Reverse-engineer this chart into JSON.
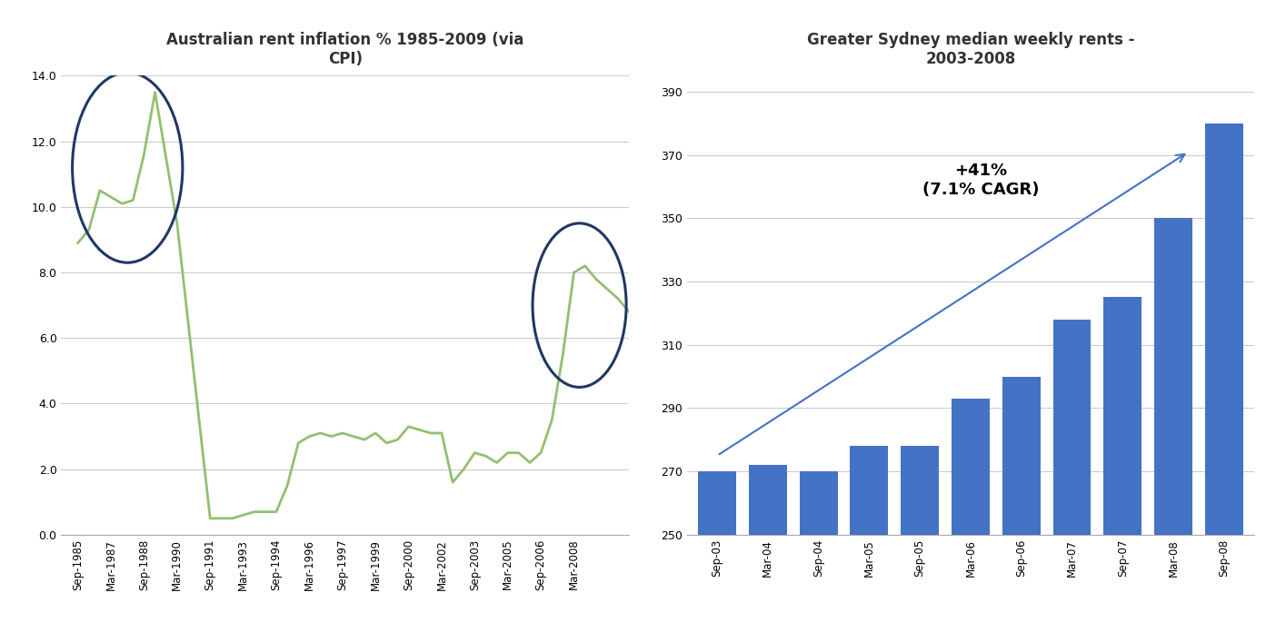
{
  "left_title": "Australian rent inflation % 1985-2009 (via\nCPI)",
  "left_xlabels": [
    "Sep-1985",
    "Mar-1987",
    "Sep-1988",
    "Mar-1990",
    "Sep-1991",
    "Mar-1993",
    "Sep-1994",
    "Mar-1996",
    "Sep-1997",
    "Mar-1999",
    "Sep-2000",
    "Mar-2002",
    "Sep-2003",
    "Mar-2005",
    "Sep-2006",
    "Mar-2008"
  ],
  "left_ylim": [
    0.0,
    14.0
  ],
  "left_yticks": [
    0.0,
    2.0,
    4.0,
    6.0,
    8.0,
    10.0,
    12.0,
    14.0
  ],
  "left_line_color": "#92C070",
  "circle_color": "#1F3864",
  "right_title": "Greater Sydney median weekly rents -\n2003-2008",
  "right_bar_color": "#4472C4",
  "right_ylim": [
    250,
    395
  ],
  "right_yticks": [
    250,
    270,
    290,
    310,
    330,
    350,
    370,
    390
  ],
  "annotation_text": "+41%\n(7.1% CAGR)",
  "right_xlabels": [
    "Sep-03",
    "Mar-04",
    "Sep-04",
    "Mar-05",
    "Sep-05",
    "Mar-06",
    "Sep-06",
    "Mar-07",
    "Sep-07",
    "Mar-08",
    "Sep-08"
  ]
}
